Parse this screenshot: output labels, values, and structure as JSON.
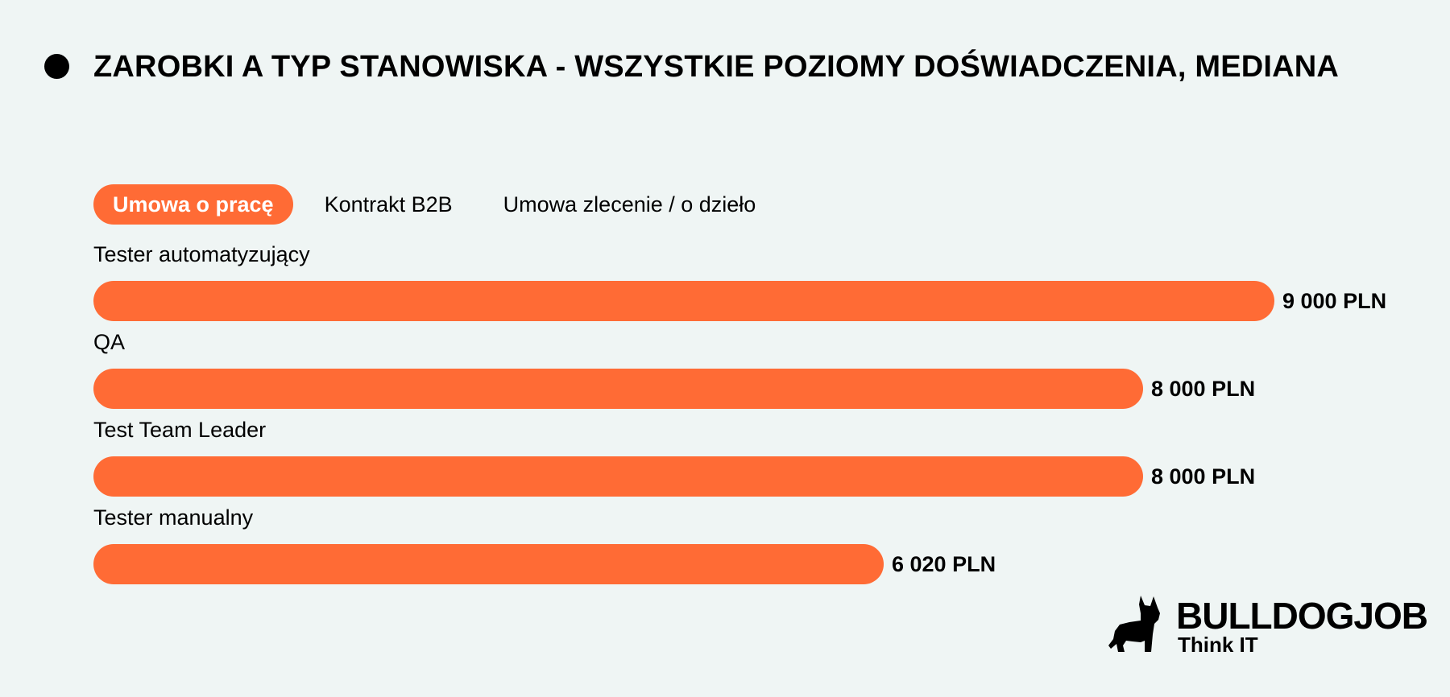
{
  "header": {
    "title": "ZAROBKI A TYP STANOWISKA - WSZYSTKIE POZIOMY DOŚWIADCZENIA, MEDIANA"
  },
  "tabs": [
    {
      "label": "Umowa o pracę",
      "active": true
    },
    {
      "label": "Kontrakt B2B",
      "active": false
    },
    {
      "label": "Umowa zlecenie / o dzieło",
      "active": false
    }
  ],
  "chart_data": {
    "type": "bar",
    "orientation": "horizontal",
    "title": "ZAROBKI A TYP STANOWISKA - WSZYSTKIE POZIOMY DOŚWIADCZENIA, MEDIANA",
    "categories": [
      "Tester automatyzujący",
      "QA",
      "Test Team Leader",
      "Tester manualny"
    ],
    "values": [
      9000,
      8000,
      8000,
      6020
    ],
    "value_labels": [
      "9 000 PLN",
      "8 000 PLN",
      "8 000 PLN",
      "6 020 PLN"
    ],
    "xlim": [
      0,
      9000
    ],
    "grid": false,
    "color": "#ff6b35"
  },
  "brand": {
    "name": "BULLDOGJOB",
    "tagline": "Think IT",
    "icon": "bulldog-icon"
  },
  "colors": {
    "accent": "#ff6b35",
    "background": "#eff5f4",
    "text": "#000000"
  }
}
